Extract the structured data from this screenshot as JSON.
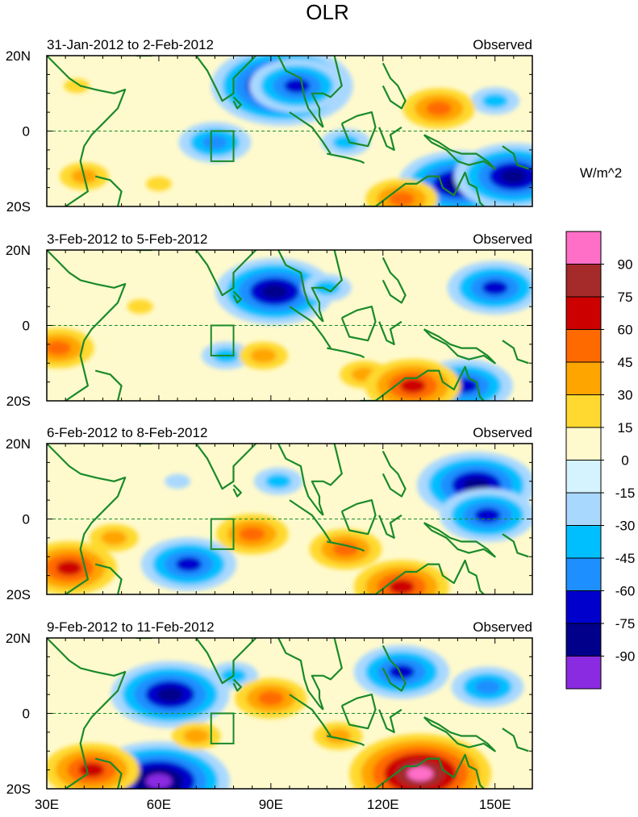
{
  "chart_data": {
    "type": "heatmap",
    "title": "OLR",
    "units": "W/m^2",
    "x_ticks": [
      "30E",
      "60E",
      "90E",
      "120E",
      "150E"
    ],
    "x_tick_values": [
      30,
      60,
      90,
      120,
      150
    ],
    "xlim": [
      30,
      160
    ],
    "y_ticks": [
      "20N",
      "0",
      "20S"
    ],
    "y_tick_values": [
      20,
      0,
      -20
    ],
    "ylim": [
      -20,
      20
    ],
    "colorbar": {
      "labels": [
        "90",
        "75",
        "60",
        "45",
        "30",
        "15",
        "0",
        "-15",
        "-30",
        "-45",
        "-60",
        "-75",
        "-90"
      ],
      "colors": [
        "#ff6ec7",
        "#a52a2a",
        "#cd0000",
        "#ff6a00",
        "#ffa500",
        "#ffd92f",
        "#fffacd",
        "#d4f3ff",
        "#a9d8ff",
        "#00bfff",
        "#1e8fff",
        "#0000cd",
        "#00008b",
        "#8a2be2"
      ]
    },
    "panels": [
      {
        "left_title": "31-Jan-2012 to 2-Feb-2012",
        "right_title": "Observed"
      },
      {
        "left_title": "3-Feb-2012 to 5-Feb-2012",
        "right_title": "Observed"
      },
      {
        "left_title": "6-Feb-2012 to 8-Feb-2012",
        "right_title": "Observed"
      },
      {
        "left_title": "9-Feb-2012 to 11-Feb-2012",
        "right_title": "Observed"
      }
    ],
    "anomaly_features": [
      [
        {
          "lon": 93,
          "lat": 12,
          "v": -95
        },
        {
          "lon": 97,
          "lat": 12,
          "v": -70
        },
        {
          "lon": 75,
          "lat": -3,
          "v": -55
        },
        {
          "lon": 110,
          "lat": -3,
          "v": -40
        },
        {
          "lon": 140,
          "lat": -14,
          "v": -80
        },
        {
          "lon": 155,
          "lat": -12,
          "v": -80
        },
        {
          "lon": 150,
          "lat": 8,
          "v": -35
        },
        {
          "lon": 38,
          "lat": 12,
          "v": 25
        },
        {
          "lon": 40,
          "lat": -12,
          "v": 35
        },
        {
          "lon": 135,
          "lat": 6,
          "v": 45
        },
        {
          "lon": 125,
          "lat": -18,
          "v": 50
        },
        {
          "lon": 60,
          "lat": -14,
          "v": 15
        }
      ],
      [
        {
          "lon": 91,
          "lat": 9,
          "v": -80
        },
        {
          "lon": 150,
          "lat": 10,
          "v": -65
        },
        {
          "lon": 142,
          "lat": -16,
          "v": -70
        },
        {
          "lon": 105,
          "lat": 10,
          "v": -35
        },
        {
          "lon": 78,
          "lat": -8,
          "v": -30
        },
        {
          "lon": 33,
          "lat": -6,
          "v": 45
        },
        {
          "lon": 88,
          "lat": -8,
          "v": 40
        },
        {
          "lon": 115,
          "lat": -13,
          "v": 30
        },
        {
          "lon": 128,
          "lat": -16,
          "v": 65
        },
        {
          "lon": 55,
          "lat": 5,
          "v": 15
        }
      ],
      [
        {
          "lon": 145,
          "lat": 9,
          "v": -75
        },
        {
          "lon": 148,
          "lat": 1,
          "v": -60
        },
        {
          "lon": 68,
          "lat": -12,
          "v": -60
        },
        {
          "lon": 92,
          "lat": 10,
          "v": -30
        },
        {
          "lon": 36,
          "lat": -13,
          "v": 65
        },
        {
          "lon": 85,
          "lat": -4,
          "v": 45
        },
        {
          "lon": 110,
          "lat": -8,
          "v": 50
        },
        {
          "lon": 125,
          "lat": -18,
          "v": 70
        },
        {
          "lon": 48,
          "lat": -5,
          "v": 30
        },
        {
          "lon": 65,
          "lat": 10,
          "v": -15
        }
      ],
      [
        {
          "lon": 63,
          "lat": 5,
          "v": -85
        },
        {
          "lon": 60,
          "lat": -18,
          "v": -90
        },
        {
          "lon": 125,
          "lat": 11,
          "v": -70
        },
        {
          "lon": 148,
          "lat": 7,
          "v": -45
        },
        {
          "lon": 80,
          "lat": 10,
          "v": -30
        },
        {
          "lon": 42,
          "lat": -15,
          "v": 60
        },
        {
          "lon": 90,
          "lat": 4,
          "v": 45
        },
        {
          "lon": 108,
          "lat": -6,
          "v": 40
        },
        {
          "lon": 130,
          "lat": -16,
          "v": 95
        },
        {
          "lon": 70,
          "lat": -6,
          "v": 30
        }
      ]
    ]
  }
}
